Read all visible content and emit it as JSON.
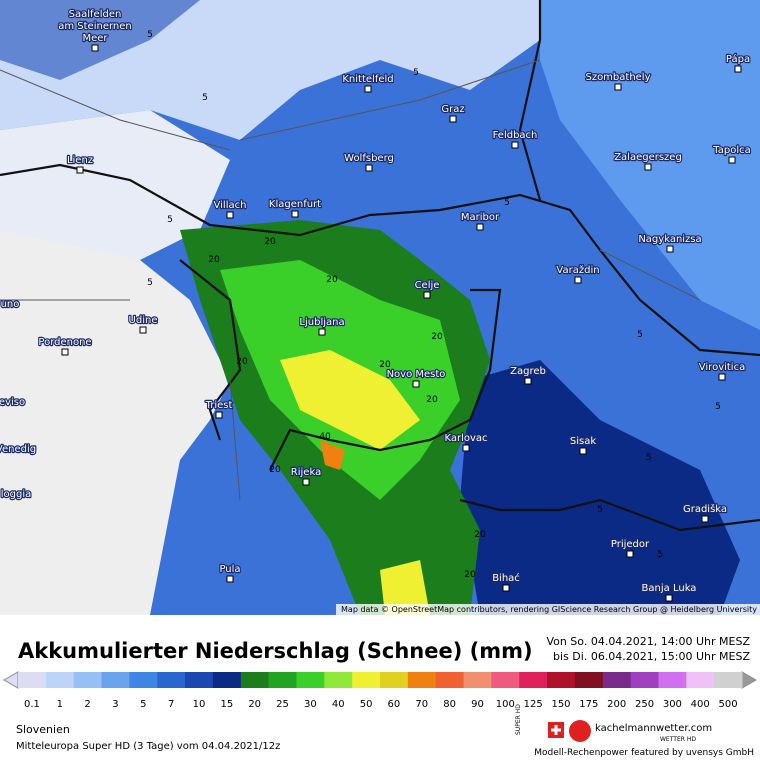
{
  "map": {
    "places": [
      "Saalfelden",
      "am Steinernen",
      "Meer",
      "Knittelfeld",
      "Graz",
      "Szombathely",
      "Pápa",
      "Feldbach",
      "Lienz",
      "Wolfsberg",
      "Zalaegerszeg",
      "Tapolca",
      "Villach",
      "Klagenfurt",
      "Maribor",
      "Nagykanizsa",
      "Varaždin",
      "Celje",
      "Udine",
      "Ljubljana",
      "Pordenone",
      "Novo Mesto",
      "Zagreb",
      "Virovitica",
      "Triest",
      "Karlovac",
      "Sisak",
      "Rijeka",
      "Gradiška",
      "Prijedor",
      "Bihać",
      "Pula",
      "Banja Luka",
      "uno",
      "eviso",
      "Venedig",
      "loggia"
    ],
    "contour_labels": [
      5,
      5,
      5,
      5,
      5,
      5,
      5,
      5,
      5,
      5,
      5,
      20,
      20,
      20,
      20,
      20,
      20,
      20,
      20,
      20,
      20,
      40
    ],
    "attribution": "Map data © OpenStreetMap contributors, rendering GIScience Research Group @ Heidelberg University"
  },
  "header": {
    "title": "Akkumulierter Niederschlag (Schnee) (mm)",
    "valid_from": "Von So. 04.04.2021, 14:00 Uhr MESZ",
    "valid_to": "bis Di. 06.04.2021, 15:00 Uhr MESZ"
  },
  "legend": {
    "values": [
      0.1,
      1,
      2,
      3,
      5,
      7,
      10,
      15,
      20,
      25,
      30,
      40,
      50,
      60,
      70,
      80,
      90,
      100,
      125,
      150,
      175,
      200,
      250,
      300,
      400,
      500
    ],
    "colors": [
      "#dcdcf4",
      "#bcd4f8",
      "#96bff5",
      "#6aa3ee",
      "#3f86e4",
      "#2a66d0",
      "#1a47b0",
      "#0b2a86",
      "#1b7d1b",
      "#21a521",
      "#3bcf2a",
      "#8fe83a",
      "#f0f032",
      "#e0d020",
      "#f08010",
      "#f06030",
      "#f09070",
      "#f05a80",
      "#e0205a",
      "#b0102a",
      "#801020",
      "#7a2a8a",
      "#a040c0",
      "#d070f0",
      "#f0c0f8",
      "#d0d0d0"
    ]
  },
  "footer": {
    "region": "Slovenien",
    "model": "Mitteleuropa Super HD (3 Tage) vom 04.04.2021/12z",
    "super_hd": "SUPER HD",
    "logo_site": "kachelmannwetter.com",
    "logo_sub": "WETTER HD",
    "sponsor": "Modell-Rechenpower featured by uvensys GmbH"
  }
}
